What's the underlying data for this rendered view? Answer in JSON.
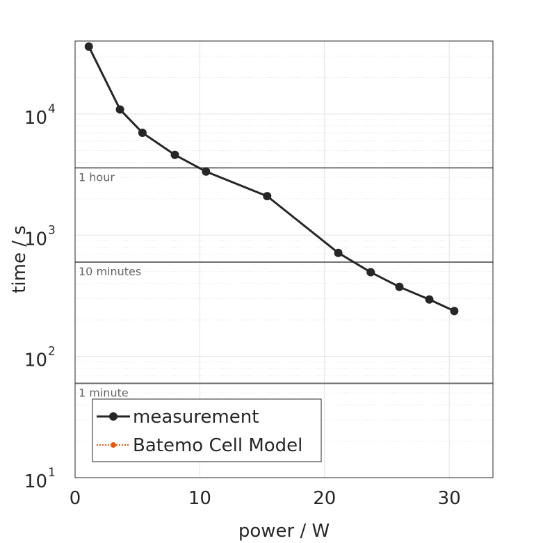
{
  "chart_data": {
    "type": "line",
    "xlabel": "power / W",
    "ylabel": "time / s",
    "xlim": [
      0,
      33.5
    ],
    "ylim": [
      10,
      40000
    ],
    "yscale": "log",
    "grid": true,
    "legend_position": "bottom-left",
    "xticks": [
      "0",
      "10",
      "20",
      "30"
    ],
    "yticks": [
      {
        "base": "10",
        "exp": "1"
      },
      {
        "base": "10",
        "exp": "2"
      },
      {
        "base": "10",
        "exp": "3"
      },
      {
        "base": "10",
        "exp": "4"
      }
    ],
    "series": [
      {
        "name": "measurement",
        "color": "#262626",
        "marker": "circle",
        "line": "solid",
        "x": [
          1.1,
          3.6,
          5.4,
          8.0,
          10.5,
          15.4,
          21.1,
          23.7,
          26.0,
          28.4,
          30.4
        ],
        "y": [
          36000,
          10900,
          7000,
          4600,
          3350,
          2100,
          715,
          495,
          375,
          295,
          237
        ]
      },
      {
        "name": "Batemo Cell Model",
        "color": "#e8590c",
        "marker": "circle",
        "line": "dotted",
        "x": [],
        "y": []
      }
    ],
    "reference_lines": [
      {
        "label": "1 hour",
        "y": 3600
      },
      {
        "label": "10 minutes",
        "y": 600
      },
      {
        "label": "1 minute",
        "y": 60
      }
    ]
  }
}
